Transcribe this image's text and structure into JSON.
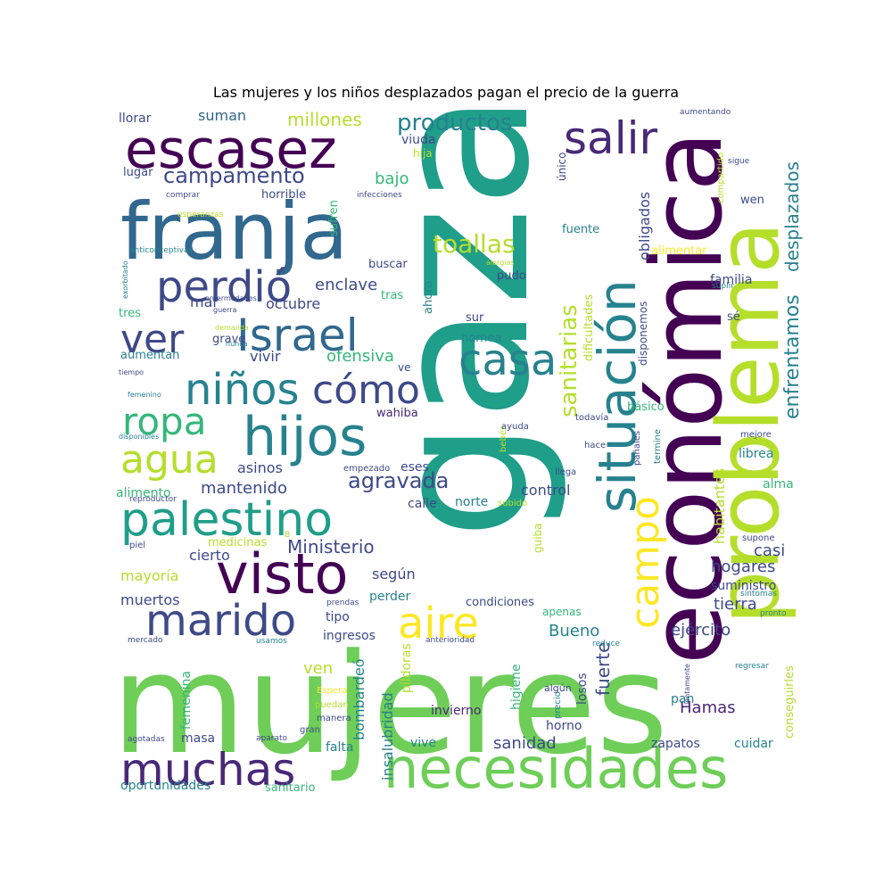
{
  "title": "Las mujeres y los niños desplazados pagan el precio de la guerra",
  "colors": {
    "dark_purple": "#440154",
    "purple": "#482878",
    "indigo": "#3e4989",
    "blue": "#31688e",
    "teal": "#26828e",
    "green_teal": "#1f9e89",
    "green": "#35b779",
    "light_green": "#6ece58",
    "lime": "#b5de2b",
    "yellow": "#fde725"
  },
  "words": [
    {
      "text": "mujeres",
      "color": "light_green"
    },
    {
      "text": "gaza",
      "color": "green_teal"
    },
    {
      "text": "económica",
      "color": "dark_purple"
    },
    {
      "text": "problema",
      "color": "lime"
    },
    {
      "text": "franja",
      "color": "blue"
    },
    {
      "text": "necesidades",
      "color": "light_green"
    },
    {
      "text": "escasez",
      "color": "dark_purple"
    },
    {
      "text": "situación",
      "color": "teal"
    },
    {
      "text": "visto",
      "color": "dark_purple"
    },
    {
      "text": "hijos",
      "color": "teal"
    },
    {
      "text": "palestino",
      "color": "green_teal"
    },
    {
      "text": "marido",
      "color": "indigo"
    },
    {
      "text": "muchas",
      "color": "purple"
    },
    {
      "text": "salir",
      "color": "purple"
    },
    {
      "text": "Israel",
      "color": "blue"
    },
    {
      "text": "perdió",
      "color": "indigo"
    },
    {
      "text": "casa",
      "color": "teal"
    },
    {
      "text": "niños",
      "color": "teal"
    },
    {
      "text": "aire",
      "color": "yellow"
    },
    {
      "text": "ver",
      "color": "indigo"
    },
    {
      "text": "cómo",
      "color": "indigo"
    },
    {
      "text": "ropa",
      "color": "green"
    },
    {
      "text": "agua",
      "color": "lime"
    },
    {
      "text": "campo",
      "color": "yellow"
    },
    {
      "text": "productos",
      "color": "teal"
    },
    {
      "text": "campamento",
      "color": "indigo"
    },
    {
      "text": "sanitarias",
      "color": "lime"
    },
    {
      "text": "toallas",
      "color": "lime"
    },
    {
      "text": "enfrentamos",
      "color": "teal"
    },
    {
      "text": "desplazados",
      "color": "teal"
    },
    {
      "text": "agravada",
      "color": "indigo"
    },
    {
      "text": "Ministerio",
      "color": "indigo"
    },
    {
      "text": "hogares",
      "color": "indigo"
    },
    {
      "text": "obligados",
      "color": "indigo"
    },
    {
      "text": "ejército",
      "color": "indigo"
    },
    {
      "text": "tierra",
      "color": "indigo"
    },
    {
      "text": "Hamas",
      "color": "purple"
    },
    {
      "text": "fuerte",
      "color": "indigo"
    },
    {
      "text": "millones",
      "color": "lime"
    },
    {
      "text": "suman",
      "color": "blue"
    },
    {
      "text": "bajo",
      "color": "green"
    },
    {
      "text": "enclave",
      "color": "indigo"
    },
    {
      "text": "octubre",
      "color": "indigo"
    },
    {
      "text": "mar",
      "color": "indigo"
    },
    {
      "text": "vivir",
      "color": "indigo"
    },
    {
      "text": "ofensiva",
      "color": "green"
    },
    {
      "text": "asinos",
      "color": "indigo"
    },
    {
      "text": "mantenido",
      "color": "indigo"
    },
    {
      "text": "control",
      "color": "indigo"
    },
    {
      "text": "cierto",
      "color": "indigo"
    },
    {
      "text": "según",
      "color": "indigo"
    },
    {
      "text": "mayoría",
      "color": "lime"
    },
    {
      "text": "muertos",
      "color": "indigo"
    },
    {
      "text": "Bueno",
      "color": "teal"
    },
    {
      "text": "casi",
      "color": "indigo"
    },
    {
      "text": "habitantes",
      "color": "lime"
    },
    {
      "text": "sanidad",
      "color": "indigo"
    },
    {
      "text": "invierno",
      "color": "purple"
    },
    {
      "text": "ven",
      "color": "lime"
    },
    {
      "text": "bombardeó",
      "color": "teal"
    },
    {
      "text": "insalubridad",
      "color": "teal"
    },
    {
      "text": "condiciones",
      "color": "indigo"
    },
    {
      "text": "oportunidades",
      "color": "teal"
    },
    {
      "text": "sanitario",
      "color": "green"
    },
    {
      "text": "vive",
      "color": "teal"
    },
    {
      "text": "falta",
      "color": "teal"
    },
    {
      "text": "masa",
      "color": "indigo"
    },
    {
      "text": "femenina",
      "color": "green"
    },
    {
      "text": "zapatos",
      "color": "indigo"
    },
    {
      "text": "cuidar",
      "color": "teal"
    },
    {
      "text": "pan",
      "color": "teal"
    },
    {
      "text": "conseguirles",
      "color": "lime"
    },
    {
      "text": "ingresos",
      "color": "indigo"
    },
    {
      "text": "tipo",
      "color": "indigo"
    },
    {
      "text": "horno",
      "color": "indigo"
    },
    {
      "text": "higiene",
      "color": "green"
    },
    {
      "text": "píldoras",
      "color": "lime"
    },
    {
      "text": "losos",
      "color": "indigo"
    },
    {
      "text": "precio",
      "color": "teal"
    },
    {
      "text": "algún",
      "color": "indigo"
    },
    {
      "text": "apenas",
      "color": "green"
    },
    {
      "text": "perder",
      "color": "teal"
    },
    {
      "text": "suministro",
      "color": "indigo"
    },
    {
      "text": "alma",
      "color": "green"
    },
    {
      "text": "librea",
      "color": "teal"
    },
    {
      "text": "alimento",
      "color": "green"
    },
    {
      "text": "calle",
      "color": "indigo"
    },
    {
      "text": "norte",
      "color": "teal"
    },
    {
      "text": "eses",
      "color": "indigo"
    },
    {
      "text": "medicinas",
      "color": "lime"
    },
    {
      "text": "piel",
      "color": "indigo"
    },
    {
      "text": "guiba",
      "color": "lime"
    },
    {
      "text": "familia",
      "color": "indigo"
    },
    {
      "text": "viuda",
      "color": "indigo"
    },
    {
      "text": "hija",
      "color": "lime"
    },
    {
      "text": "llorar",
      "color": "indigo"
    },
    {
      "text": "lugar",
      "color": "indigo"
    },
    {
      "text": "horrible",
      "color": "indigo"
    },
    {
      "text": "sufren",
      "color": "green"
    },
    {
      "text": "buscar",
      "color": "indigo"
    },
    {
      "text": "pudo",
      "color": "indigo"
    },
    {
      "text": "tras",
      "color": "green"
    },
    {
      "text": "ahora",
      "color": "teal"
    },
    {
      "text": "sur",
      "color": "indigo"
    },
    {
      "text": "hornea",
      "color": "teal"
    },
    {
      "text": "dificultades",
      "color": "lime"
    },
    {
      "text": "disponemos",
      "color": "indigo"
    },
    {
      "text": "básico",
      "color": "green"
    },
    {
      "text": "único",
      "color": "indigo"
    },
    {
      "text": "fuente",
      "color": "teal"
    },
    {
      "text": "alimentar",
      "color": "yellow"
    },
    {
      "text": "compartido",
      "color": "lime"
    },
    {
      "text": "wen",
      "color": "indigo"
    },
    {
      "text": "sé",
      "color": "indigo"
    },
    {
      "text": "grave",
      "color": "indigo"
    },
    {
      "text": "aumentan",
      "color": "teal"
    },
    {
      "text": "tres",
      "color": "green"
    },
    {
      "text": "wahiba",
      "color": "purple"
    },
    {
      "text": "ve",
      "color": "indigo"
    },
    {
      "text": "todavía",
      "color": "indigo"
    },
    {
      "text": "hace",
      "color": "indigo"
    },
    {
      "text": "llega",
      "color": "indigo"
    },
    {
      "text": "pañales",
      "color": "indigo"
    },
    {
      "text": "termine",
      "color": "teal"
    },
    {
      "text": "mejore",
      "color": "indigo"
    },
    {
      "text": "bebés",
      "color": "lime"
    },
    {
      "text": "ayuda",
      "color": "indigo"
    },
    {
      "text": "subido",
      "color": "lime"
    },
    {
      "text": "reproductor",
      "color": "indigo"
    },
    {
      "text": "empezado",
      "color": "indigo"
    },
    {
      "text": "supone",
      "color": "indigo"
    },
    {
      "text": "síntomas",
      "color": "teal"
    },
    {
      "text": "pronto",
      "color": "teal"
    },
    {
      "text": "reduce",
      "color": "teal"
    },
    {
      "text": "anterioridad",
      "color": "indigo"
    },
    {
      "text": "usamos",
      "color": "teal"
    },
    {
      "text": "prendas",
      "color": "indigo"
    },
    {
      "text": "mercado",
      "color": "indigo"
    },
    {
      "text": "Espera",
      "color": "yellow"
    },
    {
      "text": "puedan",
      "color": "lime"
    },
    {
      "text": "manera",
      "color": "indigo"
    },
    {
      "text": "gran",
      "color": "indigo"
    },
    {
      "text": "aparato",
      "color": "indigo"
    },
    {
      "text": "agotadas",
      "color": "indigo"
    },
    {
      "text": "regresar",
      "color": "teal"
    },
    {
      "text": "lentamente",
      "color": "indigo"
    },
    {
      "text": "aumentando",
      "color": "indigo"
    },
    {
      "text": "sigue",
      "color": "indigo"
    },
    {
      "text": "suplir",
      "color": "teal"
    },
    {
      "text": "comprar",
      "color": "indigo"
    },
    {
      "text": "esperanzas",
      "color": "lime"
    },
    {
      "text": "infecciones",
      "color": "indigo"
    },
    {
      "text": "alergias",
      "color": "lime"
    },
    {
      "text": "exorbitado",
      "color": "teal"
    },
    {
      "text": "anticonceptivas",
      "color": "teal"
    },
    {
      "text": "enfermedades",
      "color": "indigo"
    },
    {
      "text": "guerra",
      "color": "indigo"
    },
    {
      "text": "demanda",
      "color": "lime"
    },
    {
      "text": "nunca",
      "color": "teal"
    },
    {
      "text": "tiempo",
      "color": "indigo"
    },
    {
      "text": "femenino",
      "color": "teal"
    },
    {
      "text": "disponibles",
      "color": "teal"
    },
    {
      "text": "B",
      "color": "lime"
    }
  ]
}
